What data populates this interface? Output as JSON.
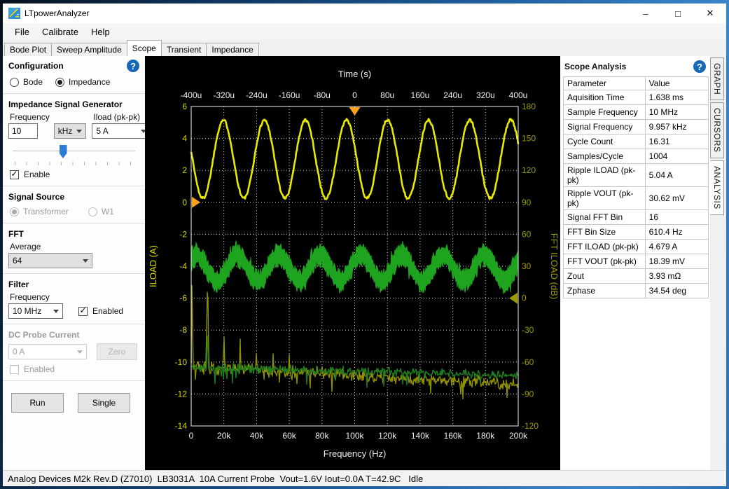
{
  "window": {
    "title": "LTpowerAnalyzer",
    "controls": {
      "minimize": "–",
      "maximize": "□",
      "close": "✕"
    }
  },
  "menu": {
    "items": [
      "File",
      "Calibrate",
      "Help"
    ]
  },
  "tabs": {
    "items": [
      "Bode Plot",
      "Sweep Amplitude",
      "Scope",
      "Transient",
      "Impedance"
    ],
    "active": "Scope"
  },
  "sidebar": {
    "configuration": {
      "title": "Configuration",
      "help_icon": "?",
      "options": [
        {
          "label": "Bode",
          "selected": false
        },
        {
          "label": "Impedance",
          "selected": true
        }
      ]
    },
    "signal_generator": {
      "title": "Impedance Signal Generator",
      "frequency_label": "Frequency",
      "frequency_value": "10",
      "frequency_unit": "kHz",
      "iload_label": "Iload (pk-pk)",
      "iload_value": "5 A",
      "slider_percent": 38,
      "enable_label": "Enable",
      "enable_checked": true
    },
    "signal_source": {
      "title": "Signal Source",
      "disabled": true,
      "options": [
        {
          "label": "Transformer",
          "selected": true
        },
        {
          "label": "W1",
          "selected": false
        }
      ]
    },
    "fft": {
      "title": "FFT",
      "average_label": "Average",
      "average_value": "64"
    },
    "filter": {
      "title": "Filter",
      "frequency_label": "Frequency",
      "frequency_value": "10 MHz",
      "enabled_label": "Enabled",
      "enabled_checked": true
    },
    "dc_probe": {
      "title": "DC Probe Current",
      "disabled": true,
      "value": "0 A",
      "zero_label": "Zero",
      "enabled_label": "Enabled",
      "enabled_checked": false
    },
    "run_label": "Run",
    "single_label": "Single"
  },
  "analysis_panel": {
    "title": "Scope Analysis",
    "help_icon": "?",
    "columns": [
      "Parameter",
      "Value"
    ],
    "rows": [
      [
        "Aquisition Time",
        "1.638 ms"
      ],
      [
        "Sample Frequency",
        "10 MHz"
      ],
      [
        "Signal Frequency",
        "9.957 kHz"
      ],
      [
        "Cycle Count",
        "16.31"
      ],
      [
        "Samples/Cycle",
        "1004"
      ],
      [
        "Ripple ILOAD (pk-pk)",
        "5.04 A"
      ],
      [
        "Ripple VOUT (pk-pk)",
        "30.62 mV"
      ],
      [
        "Signal FFT Bin",
        "16"
      ],
      [
        "FFT Bin Size",
        "610.4 Hz"
      ],
      [
        "FFT ILOAD (pk-pk)",
        "4.679 A"
      ],
      [
        "FFT VOUT (pk-pk)",
        "18.39 mV"
      ],
      [
        "Zout",
        "3.93 mΩ"
      ],
      [
        "Zphase",
        "34.54 deg"
      ]
    ]
  },
  "side_tabs": {
    "items": [
      "GRAPH",
      "CURSORS",
      "ANALYSIS"
    ],
    "active": "ANALYSIS"
  },
  "status_bar": {
    "text": "Analog Devices M2k Rev.D (Z7010)  LB3031A  10A Current Probe  Vout=1.6V Iout=0.0A T=42.9C   Idle"
  },
  "chart_data": {
    "type": "line",
    "background": "#000000",
    "grid": true,
    "axes": {
      "top": {
        "label": "Time (s)",
        "color": "#f0f0f0",
        "range_us": [
          -400,
          400
        ],
        "ticks": [
          "-400u",
          "-320u",
          "-240u",
          "-160u",
          "-80u",
          "0",
          "80u",
          "160u",
          "240u",
          "320u",
          "400u"
        ]
      },
      "bottom": {
        "label": "Frequency (Hz)",
        "color": "#f0f0f0",
        "range_hz": [
          0,
          200000
        ],
        "ticks": [
          "0",
          "20k",
          "40k",
          "60k",
          "80k",
          "100k",
          "120k",
          "140k",
          "160k",
          "180k",
          "200k"
        ]
      },
      "left": {
        "label": "ILOAD (A)",
        "color": "#d9d900",
        "range": [
          -14,
          6
        ],
        "ticks": [
          "6",
          "4",
          "2",
          "0",
          "-2",
          "-4",
          "-6",
          "-8",
          "-10",
          "-12",
          "-14"
        ]
      },
      "right": {
        "label": "FFT ILOAD (dB)",
        "color": "#9b9b00",
        "range": [
          -120,
          180
        ],
        "ticks": [
          "180",
          "150",
          "120",
          "90",
          "60",
          "30",
          "0",
          "-30",
          "-60",
          "-90",
          "-120"
        ]
      }
    },
    "markers": {
      "trigger_time_us": 0,
      "trigger_level_a": 0,
      "trigger_color": "#ffa11c",
      "fft_marker_db": 0,
      "fft_marker_color": "#9b9b00"
    },
    "series": [
      {
        "name": "ILOAD waveform",
        "kind": "sine",
        "color": "#e9e900",
        "offset_a": 2.7,
        "amplitude_a": 2.45,
        "freq_khz": 9.957,
        "peak_time_us": -20,
        "fuzz_a": 0.09,
        "width": 2.6
      },
      {
        "name": "VOUT ripple waveform",
        "kind": "band-sine",
        "color": "#1fa41f",
        "offset_a": -4.1,
        "amplitude_a": 0.8,
        "freq_khz": 9.957,
        "peak_time_us": 15,
        "band_a": 0.28,
        "noise_a": 0.5
      },
      {
        "name": "FFT ILOAD",
        "kind": "fft",
        "color": "#8f8f00",
        "floor_start_a": -10.3,
        "floor_end_a": -11.4,
        "noise_a": 0.5,
        "peaks": [
          [
            500,
            -5.1,
            450
          ],
          [
            10000,
            -5.45,
            700
          ],
          [
            20000,
            -8.15,
            500
          ],
          [
            30000,
            -8.55,
            500
          ],
          [
            40000,
            -8.9,
            450
          ],
          [
            50000,
            -9.25,
            450
          ],
          [
            60000,
            -9.5,
            400
          ],
          [
            70000,
            -10.0,
            350
          ],
          [
            80000,
            -10.05,
            350
          ],
          [
            90000,
            -10.3,
            300
          ],
          [
            100000,
            -10.15,
            300
          ]
        ]
      },
      {
        "name": "FFT VOUT",
        "kind": "fft",
        "color": "#1e7d1e",
        "floor_start_a": -10.35,
        "floor_end_a": -10.8,
        "noise_a": 0.33,
        "peaks": [
          [
            10000,
            -8.0,
            500
          ],
          [
            20000,
            -9.85,
            350
          ],
          [
            30000,
            -10.05,
            300
          ]
        ]
      }
    ]
  }
}
